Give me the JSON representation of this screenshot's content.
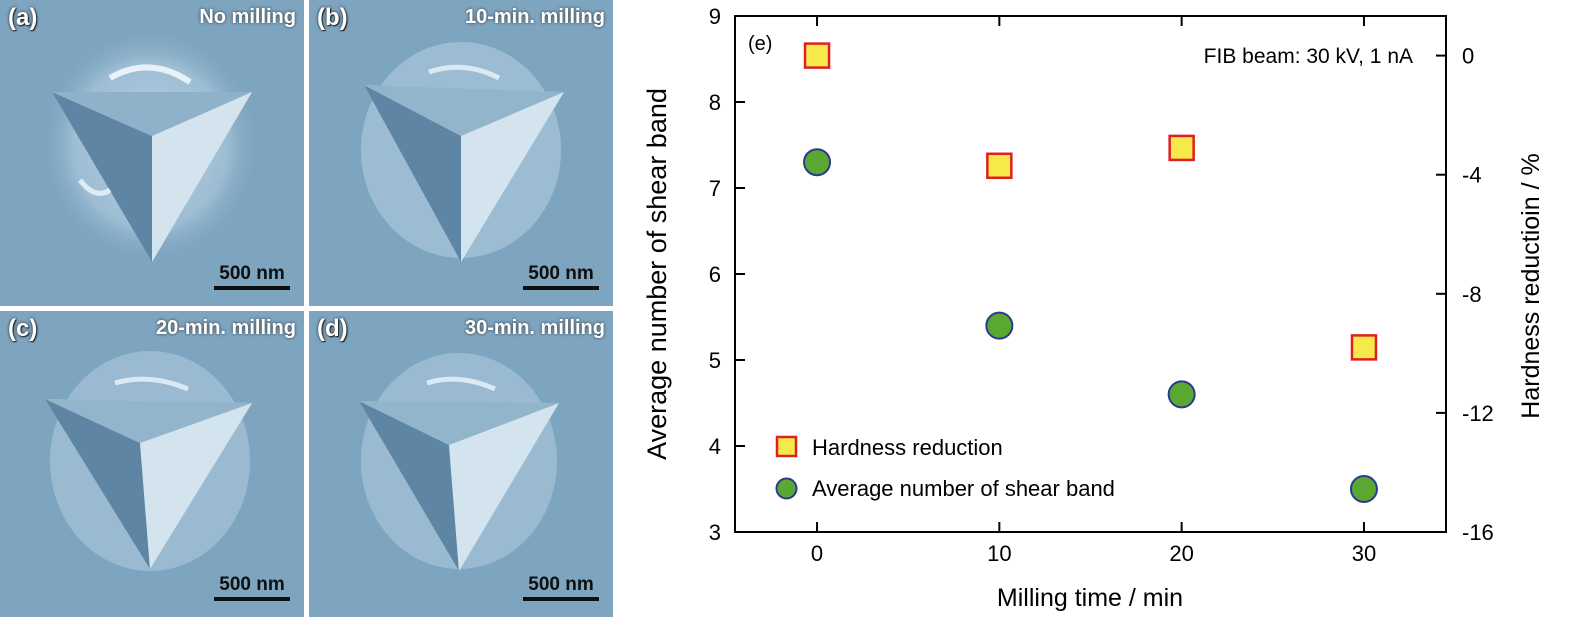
{
  "panels": [
    {
      "label": "(a)",
      "title": "No milling",
      "scalebar": "500 nm"
    },
    {
      "label": "(b)",
      "title": "10-min. milling",
      "scalebar": "500 nm"
    },
    {
      "label": "(c)",
      "title": "20-min. milling",
      "scalebar": "500 nm"
    },
    {
      "label": "(d)",
      "title": "30-min. milling",
      "scalebar": "500 nm"
    }
  ],
  "colors": {
    "sem_background": "#7ea5c0",
    "square_fill": "#f5ea4a",
    "square_edge": "#e02020",
    "circle_fill": "#5aa832",
    "circle_edge": "#2a3a8c"
  },
  "chart_data": {
    "type": "scatter",
    "panel_label": "(e)",
    "annotation": "FIB beam: 30 kV, 1 nA",
    "xlabel": "Milling time / min",
    "ylabel_left": "Average number of shear band",
    "ylabel_right": "Hardness reductioin / %",
    "xlim": [
      -4.5,
      34.5
    ],
    "ylim_left": [
      3,
      9
    ],
    "ylim_right": [
      -16,
      1.33
    ],
    "xticks": [
      0,
      10,
      20,
      30
    ],
    "yticks_left": [
      3,
      4,
      5,
      6,
      7,
      8,
      9
    ],
    "yticks_right": [
      0,
      -4,
      -8,
      -12,
      -16
    ],
    "legend_position": "lower-left",
    "series": [
      {
        "name": "Hardness reduction",
        "axis": "right",
        "marker": "square",
        "x": [
          0,
          10,
          20,
          30
        ],
        "y": [
          0,
          -3.7,
          -3.1,
          -9.8
        ]
      },
      {
        "name": "Average number of shear band",
        "axis": "left",
        "marker": "circle",
        "x": [
          0,
          10,
          20,
          30
        ],
        "y": [
          7.3,
          5.4,
          4.6,
          3.5
        ]
      }
    ]
  }
}
